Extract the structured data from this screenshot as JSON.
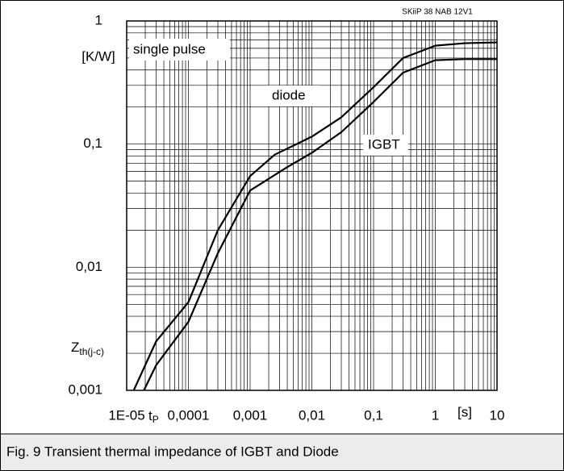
{
  "chart_data": {
    "type": "line",
    "caption": "Fig. 9 Transient thermal impedance of IGBT and Diode",
    "header_note": "SKiiP 38 NAB 12V1",
    "unit_y": "[K/W]",
    "unit_x": "[s]",
    "y_label": {
      "text": "Z",
      "subscript": "th(j-c)"
    },
    "x_label": {
      "text": "t",
      "subscript": "P"
    },
    "annotations": [
      "single pulse",
      "diode",
      "IGBT"
    ],
    "x_log": true,
    "y_log": true,
    "grid": true,
    "minor_grid": true,
    "xlim": [
      1e-05,
      10
    ],
    "ylim": [
      0.001,
      1
    ],
    "xticks": [
      {
        "value": 1e-05,
        "label": "1E-05"
      },
      {
        "value": 0.0001,
        "label": "0,0001"
      },
      {
        "value": 0.001,
        "label": "0,001"
      },
      {
        "value": 0.01,
        "label": "0,01"
      },
      {
        "value": 0.1,
        "label": "0,1"
      },
      1,
      10
    ],
    "yticks": [
      {
        "value": 0.001,
        "label": "0,001"
      },
      {
        "value": 0.01,
        "label": "0,01"
      },
      {
        "value": 0.1,
        "label": "0,1"
      },
      1
    ],
    "series": [
      {
        "name": "diode",
        "color": "#000000",
        "x": [
          1.3e-05,
          3e-05,
          0.0001,
          0.0003,
          0.001,
          0.0025,
          0.01,
          0.03,
          0.1,
          0.3,
          1,
          3,
          10
        ],
        "values": [
          0.001,
          0.0025,
          0.0052,
          0.02,
          0.055,
          0.082,
          0.115,
          0.165,
          0.29,
          0.5,
          0.63,
          0.66,
          0.67
        ]
      },
      {
        "name": "IGBT",
        "color": "#000000",
        "x": [
          1.9e-05,
          3e-05,
          0.0001,
          0.0003,
          0.001,
          0.004,
          0.01,
          0.03,
          0.1,
          0.3,
          1,
          3,
          10
        ],
        "values": [
          0.001,
          0.0016,
          0.0036,
          0.013,
          0.042,
          0.065,
          0.085,
          0.125,
          0.22,
          0.38,
          0.48,
          0.49,
          0.49
        ]
      }
    ]
  }
}
